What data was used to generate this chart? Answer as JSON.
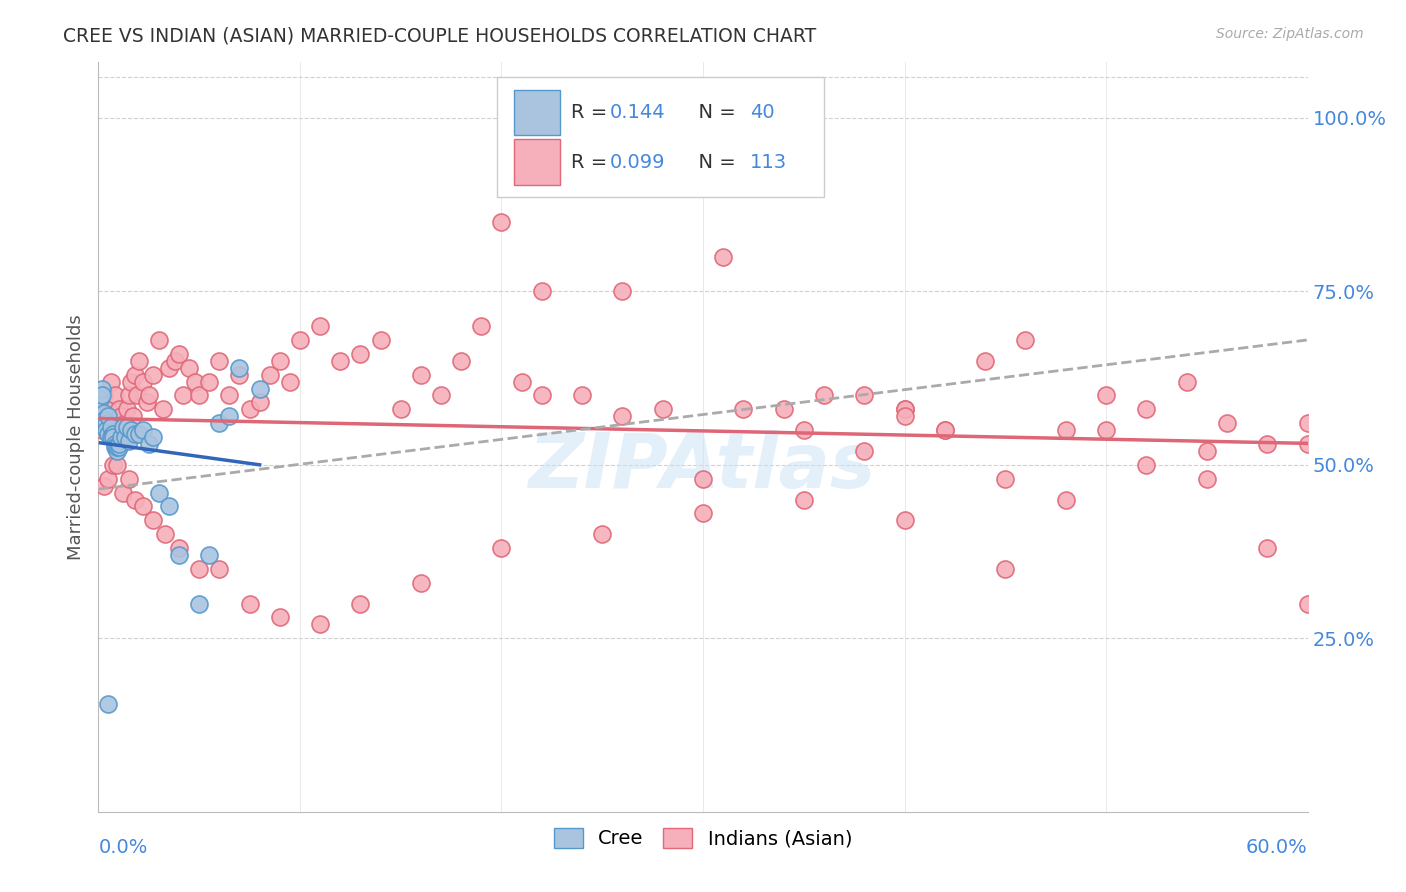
{
  "title": "CREE VS INDIAN (ASIAN) MARRIED-COUPLE HOUSEHOLDS CORRELATION CHART",
  "source": "Source: ZipAtlas.com",
  "ylabel": "Married-couple Households",
  "watermark": "ZIPAtlas",
  "cree_R": 0.144,
  "cree_N": 40,
  "indian_R": 0.099,
  "indian_N": 113,
  "cree_color": "#aac4e0",
  "cree_edge": "#5599cc",
  "indian_color": "#f5b0bb",
  "indian_edge": "#e06878",
  "cree_line_color": "#3366bb",
  "indian_line_color": "#dd6677",
  "dash_line_color": "#aaaaaa",
  "background_color": "#ffffff",
  "grid_color": "#cccccc",
  "right_yaxis_color": "#4488dd",
  "title_color": "#333333",
  "ytick_labels": [
    "25.0%",
    "50.0%",
    "75.0%",
    "100.0%"
  ],
  "ytick_vals": [
    0.25,
    0.5,
    0.75,
    1.0
  ],
  "xlim": [
    0.0,
    0.6
  ],
  "ylim": [
    0.0,
    1.08
  ],
  "cree_x": [
    0.001,
    0.002,
    0.002,
    0.003,
    0.003,
    0.004,
    0.004,
    0.005,
    0.005,
    0.006,
    0.006,
    0.007,
    0.007,
    0.008,
    0.008,
    0.009,
    0.009,
    0.01,
    0.01,
    0.011,
    0.012,
    0.013,
    0.014,
    0.015,
    0.016,
    0.018,
    0.02,
    0.022,
    0.025,
    0.027,
    0.03,
    0.035,
    0.04,
    0.05,
    0.055,
    0.06,
    0.065,
    0.07,
    0.08,
    0.005
  ],
  "cree_y": [
    0.595,
    0.61,
    0.6,
    0.575,
    0.565,
    0.56,
    0.55,
    0.57,
    0.545,
    0.555,
    0.54,
    0.545,
    0.54,
    0.53,
    0.525,
    0.52,
    0.525,
    0.525,
    0.53,
    0.54,
    0.555,
    0.54,
    0.555,
    0.535,
    0.55,
    0.545,
    0.545,
    0.55,
    0.53,
    0.54,
    0.46,
    0.44,
    0.37,
    0.3,
    0.37,
    0.56,
    0.57,
    0.64,
    0.61,
    0.155
  ],
  "indian_x": [
    0.002,
    0.003,
    0.005,
    0.006,
    0.007,
    0.008,
    0.009,
    0.01,
    0.011,
    0.012,
    0.013,
    0.014,
    0.015,
    0.016,
    0.017,
    0.018,
    0.019,
    0.02,
    0.022,
    0.024,
    0.025,
    0.027,
    0.03,
    0.032,
    0.035,
    0.038,
    0.04,
    0.042,
    0.045,
    0.048,
    0.05,
    0.055,
    0.06,
    0.065,
    0.07,
    0.075,
    0.08,
    0.085,
    0.09,
    0.095,
    0.1,
    0.11,
    0.12,
    0.13,
    0.14,
    0.15,
    0.16,
    0.17,
    0.18,
    0.19,
    0.2,
    0.21,
    0.22,
    0.24,
    0.26,
    0.28,
    0.3,
    0.32,
    0.34,
    0.36,
    0.38,
    0.4,
    0.42,
    0.44,
    0.46,
    0.48,
    0.5,
    0.52,
    0.54,
    0.56,
    0.58,
    0.6,
    0.003,
    0.005,
    0.007,
    0.009,
    0.012,
    0.015,
    0.018,
    0.022,
    0.027,
    0.033,
    0.04,
    0.05,
    0.06,
    0.075,
    0.09,
    0.11,
    0.13,
    0.16,
    0.2,
    0.25,
    0.3,
    0.35,
    0.4,
    0.45,
    0.5,
    0.55,
    0.6,
    0.35,
    0.38,
    0.4,
    0.42,
    0.45,
    0.48,
    0.52,
    0.55,
    0.58,
    0.6,
    0.22,
    0.26,
    0.31,
    0.4
  ],
  "indian_y": [
    0.55,
    0.6,
    0.58,
    0.62,
    0.56,
    0.6,
    0.55,
    0.58,
    0.57,
    0.55,
    0.56,
    0.58,
    0.6,
    0.62,
    0.57,
    0.63,
    0.6,
    0.65,
    0.62,
    0.59,
    0.6,
    0.63,
    0.68,
    0.58,
    0.64,
    0.65,
    0.66,
    0.6,
    0.64,
    0.62,
    0.6,
    0.62,
    0.65,
    0.6,
    0.63,
    0.58,
    0.59,
    0.63,
    0.65,
    0.62,
    0.68,
    0.7,
    0.65,
    0.66,
    0.68,
    0.58,
    0.63,
    0.6,
    0.65,
    0.7,
    0.85,
    0.62,
    0.6,
    0.6,
    0.57,
    0.58,
    0.48,
    0.58,
    0.58,
    0.6,
    0.6,
    0.58,
    0.55,
    0.65,
    0.68,
    0.55,
    0.6,
    0.58,
    0.62,
    0.56,
    0.53,
    0.56,
    0.47,
    0.48,
    0.5,
    0.5,
    0.46,
    0.48,
    0.45,
    0.44,
    0.42,
    0.4,
    0.38,
    0.35,
    0.35,
    0.3,
    0.28,
    0.27,
    0.3,
    0.33,
    0.38,
    0.4,
    0.43,
    0.45,
    0.42,
    0.35,
    0.55,
    0.52,
    0.53,
    0.55,
    0.52,
    0.58,
    0.55,
    0.48,
    0.45,
    0.5,
    0.48,
    0.38,
    0.3,
    0.75,
    0.75,
    0.8,
    0.57
  ]
}
